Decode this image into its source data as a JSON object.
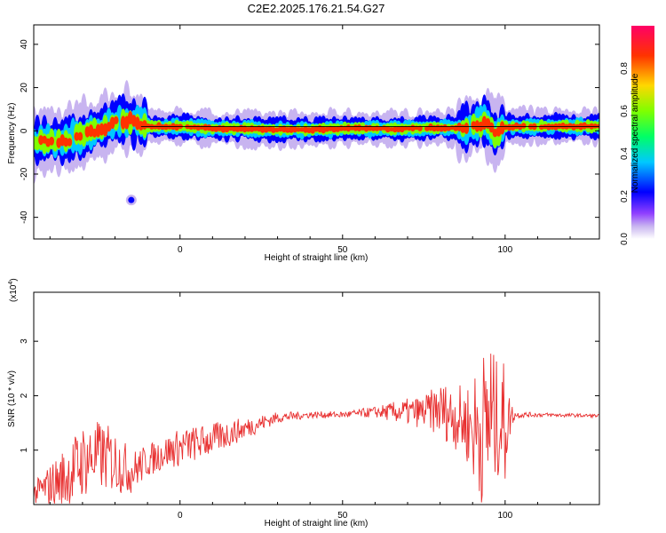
{
  "title": "C2E2.2025.176.21.54.G27",
  "colors": {
    "snr_line": "#e83030",
    "ridge_line": "#000000",
    "colormap": [
      "#ffffff",
      "#c8b4f0",
      "#7b00ff",
      "#0000ff",
      "#00c8ff",
      "#00ff66",
      "#7fff00",
      "#ffd700",
      "#ff3300",
      "#ff0066"
    ]
  },
  "chart_data": [
    {
      "type": "heatmap",
      "title": "C2E2.2025.176.21.54.G27",
      "xlabel": "Height of straight line (km)",
      "ylabel": "Frequency (Hz)",
      "xlim": [
        -45,
        129
      ],
      "ylim": [
        -50,
        49
      ],
      "xticks": [
        "0",
        "50",
        "100"
      ],
      "yticks": [
        "40",
        "20",
        "0",
        "-20",
        "-40"
      ],
      "colorbar": {
        "label": "Normalized spectral amplitude",
        "range": [
          0,
          1
        ],
        "ticks": [
          "0.0",
          "0.2",
          "0.4",
          "0.6",
          "0.8"
        ]
      },
      "ridge_frequency_hz": 2,
      "frequency_track": {
        "x": [
          -44,
          -40,
          -36,
          -32,
          -28,
          -24,
          -20,
          -16,
          -12,
          -8,
          0,
          10,
          20,
          30,
          40,
          50,
          60,
          70,
          80,
          86,
          90,
          94,
          97,
          100,
          110,
          129
        ],
        "y": [
          -5,
          -4.5,
          -5,
          -3,
          -1,
          1,
          4,
          5,
          3,
          2,
          2,
          1,
          1,
          0.5,
          0.5,
          1,
          1,
          1,
          1.5,
          1,
          2,
          4,
          -2,
          2,
          2,
          2
        ]
      },
      "blobs": [
        {
          "x": -15,
          "y": -32,
          "amplitude": 0.35
        }
      ]
    },
    {
      "type": "line",
      "xlabel": "Height of straight line (km)",
      "ylabel": "SNR (10 * v/v)",
      "y_multiplier": "(x10",
      "y_multiplier_exp": "4",
      "xlim": [
        -45,
        129
      ],
      "ylim": [
        0,
        3.9
      ],
      "xticks": [
        "0",
        "50",
        "100"
      ],
      "yticks": [
        "1",
        "2",
        "3"
      ],
      "series": [
        {
          "envelope": {
            "x": [
              -45,
              -35,
              -30,
              -25,
              -20,
              -15,
              -10,
              -5,
              0,
              10,
              20,
              30,
              40,
              50,
              60,
              70,
              75,
              80,
              85,
              88,
              90,
              92,
              94,
              95,
              96,
              98,
              100,
              101,
              103,
              110,
              129
            ],
            "base": [
              0.2,
              0.5,
              0.8,
              0.9,
              0.8,
              0.6,
              0.8,
              0.95,
              1.05,
              1.2,
              1.4,
              1.6,
              1.65,
              1.65,
              1.7,
              1.7,
              1.7,
              1.75,
              1.6,
              1.5,
              1.4,
              1.35,
              1.45,
              1.6,
              1.55,
              1.5,
              1.5,
              1.6,
              1.65,
              1.65,
              1.63
            ],
            "spread": [
              0.2,
              0.6,
              0.7,
              0.65,
              0.6,
              0.4,
              0.3,
              0.3,
              0.35,
              0.3,
              0.2,
              0.1,
              0.06,
              0.06,
              0.1,
              0.25,
              0.3,
              0.5,
              0.6,
              0.7,
              1.0,
              1.3,
              1.5,
              2.2,
              1.4,
              1.0,
              1.2,
              0.5,
              0.06,
              0.04,
              0.03
            ]
          }
        }
      ]
    }
  ]
}
